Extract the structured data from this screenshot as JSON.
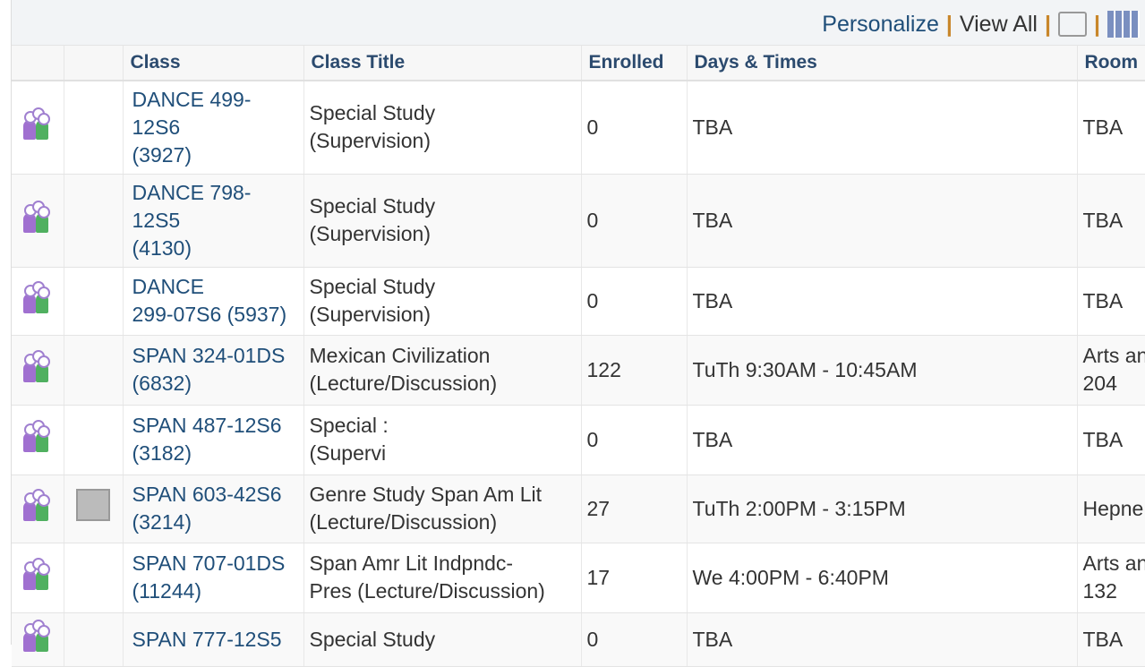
{
  "toolbar": {
    "personalize": "Personalize",
    "view_all": "View All",
    "separator": "|",
    "icons": [
      "zoom-icon",
      "download-grid-icon"
    ]
  },
  "columns": [
    "",
    "",
    "Class",
    "Class Title",
    "Enrolled",
    "Days & Times",
    "Room"
  ],
  "rows": [
    {
      "class_lines": [
        "DANCE 499-",
        "12S6",
        "(3927)"
      ],
      "title_lines": [
        "Special Study",
        "(Supervision)"
      ],
      "enrolled": "0",
      "days": "TBA",
      "room_lines": [
        "TBA"
      ],
      "extra_icon": false
    },
    {
      "class_lines": [
        "DANCE 798-",
        "12S5",
        "(4130)"
      ],
      "title_lines": [
        "Special Study",
        "(Supervision)"
      ],
      "enrolled": "0",
      "days": "TBA",
      "room_lines": [
        "TBA"
      ],
      "extra_icon": false
    },
    {
      "class_lines": [
        "DANCE",
        "299-07S6 (5937)"
      ],
      "title_lines": [
        "Special Study",
        "(Supervision)"
      ],
      "enrolled": "0",
      "days": "TBA",
      "room_lines": [
        "TBA"
      ],
      "extra_icon": false
    },
    {
      "class_lines": [
        "SPAN 324-01DS",
        "(6832)"
      ],
      "title_lines": [
        "Mexican Civilization",
        "(Lecture/Discussion)"
      ],
      "enrolled": "122",
      "days": "TuTh 9:30AM - 10:45AM",
      "room_lines": [
        "Arts an",
        "204"
      ],
      "extra_icon": false
    },
    {
      "class_lines": [
        "SPAN 487-12S6",
        "(3182)"
      ],
      "title_lines": [
        "Special :",
        "(Supervi"
      ],
      "enrolled": "0",
      "days": "TBA",
      "room_lines": [
        "TBA"
      ],
      "extra_icon": false
    },
    {
      "class_lines": [
        "SPAN 603-42S6",
        "(3214)"
      ],
      "title_lines": [
        "Genre Study Span Am Lit",
        "(Lecture/Discussion)"
      ],
      "enrolled": "27",
      "days": "TuTh 2:00PM - 3:15PM",
      "room_lines": [
        "Hepne"
      ],
      "extra_icon": true
    },
    {
      "class_lines": [
        "SPAN 707-01DS",
        "(11244)"
      ],
      "title_lines": [
        "Span Amr Lit Indpndc-",
        "Pres (Lecture/Discussion)"
      ],
      "enrolled": "17",
      "days": "We 4:00PM - 6:40PM",
      "room_lines": [
        "Arts an",
        "132"
      ],
      "extra_icon": false
    },
    {
      "class_lines": [
        "SPAN 777-12S5"
      ],
      "title_lines": [
        "Special Study"
      ],
      "enrolled": "0",
      "days": "TBA",
      "room_lines": [
        "TBA"
      ],
      "extra_icon": false
    }
  ]
}
